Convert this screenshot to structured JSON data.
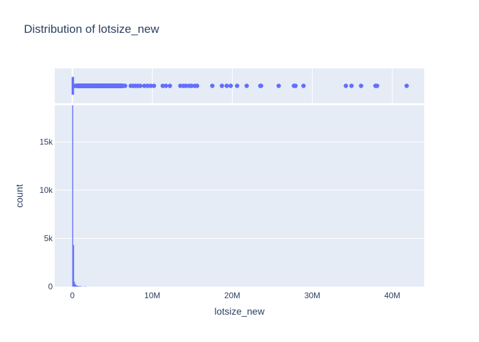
{
  "chart_data": {
    "type": "histogram",
    "title": "Distribution of lotsize_new",
    "xlabel": "lotsize_new",
    "ylabel": "count",
    "xlim": [
      -2200000,
      44000000
    ],
    "ylim": [
      0,
      18800
    ],
    "x_ticks": [
      {
        "value": 0,
        "label": "0"
      },
      {
        "value": 10000000,
        "label": "10M"
      },
      {
        "value": 20000000,
        "label": "20M"
      },
      {
        "value": 30000000,
        "label": "30M"
      },
      {
        "value": 40000000,
        "label": "40M"
      }
    ],
    "y_ticks": [
      {
        "value": 0,
        "label": "0"
      },
      {
        "value": 5000,
        "label": "5k"
      },
      {
        "value": 10000,
        "label": "10k"
      },
      {
        "value": 15000,
        "label": "15k"
      }
    ],
    "bin_width": 100000,
    "bins": [
      {
        "x0": 0,
        "count": 19000
      },
      {
        "x0": 100000,
        "count": 4300
      },
      {
        "x0": 200000,
        "count": 500
      },
      {
        "x0": 300000,
        "count": 250
      },
      {
        "x0": 400000,
        "count": 150
      },
      {
        "x0": 500000,
        "count": 100
      },
      {
        "x0": 600000,
        "count": 70
      },
      {
        "x0": 700000,
        "count": 50
      },
      {
        "x0": 800000,
        "count": 40
      },
      {
        "x0": 900000,
        "count": 30
      },
      {
        "x0": 1000000,
        "count": 25
      },
      {
        "x0": 1100000,
        "count": 20
      },
      {
        "x0": 1500000,
        "count": 15
      },
      {
        "x0": 1700000,
        "count": 10
      }
    ],
    "box": {
      "min": 0,
      "q1": 0,
      "median": 0,
      "q3": 100000,
      "upper_fence": 250000
    },
    "outliers": [
      300000,
      600000,
      900000,
      1200000,
      1500000,
      1800000,
      2100000,
      2400000,
      2700000,
      3000000,
      3300000,
      3600000,
      3900000,
      4200000,
      4500000,
      4800000,
      5100000,
      5400000,
      5700000,
      6000000,
      6300000,
      6600000,
      7300000,
      7600000,
      7900000,
      8200000,
      8500000,
      9000000,
      9400000,
      9800000,
      10200000,
      11300000,
      11700000,
      12200000,
      13500000,
      13900000,
      14200000,
      14600000,
      14900000,
      15300000,
      15600000,
      17500000,
      18700000,
      19300000,
      19800000,
      20600000,
      21800000,
      23500000,
      23600000,
      25800000,
      27700000,
      27900000,
      28900000,
      34200000,
      34900000,
      36100000,
      37900000,
      38100000,
      41800000
    ],
    "color": "#636efa",
    "plot_bg": "#e5ecf6",
    "grid": true
  }
}
